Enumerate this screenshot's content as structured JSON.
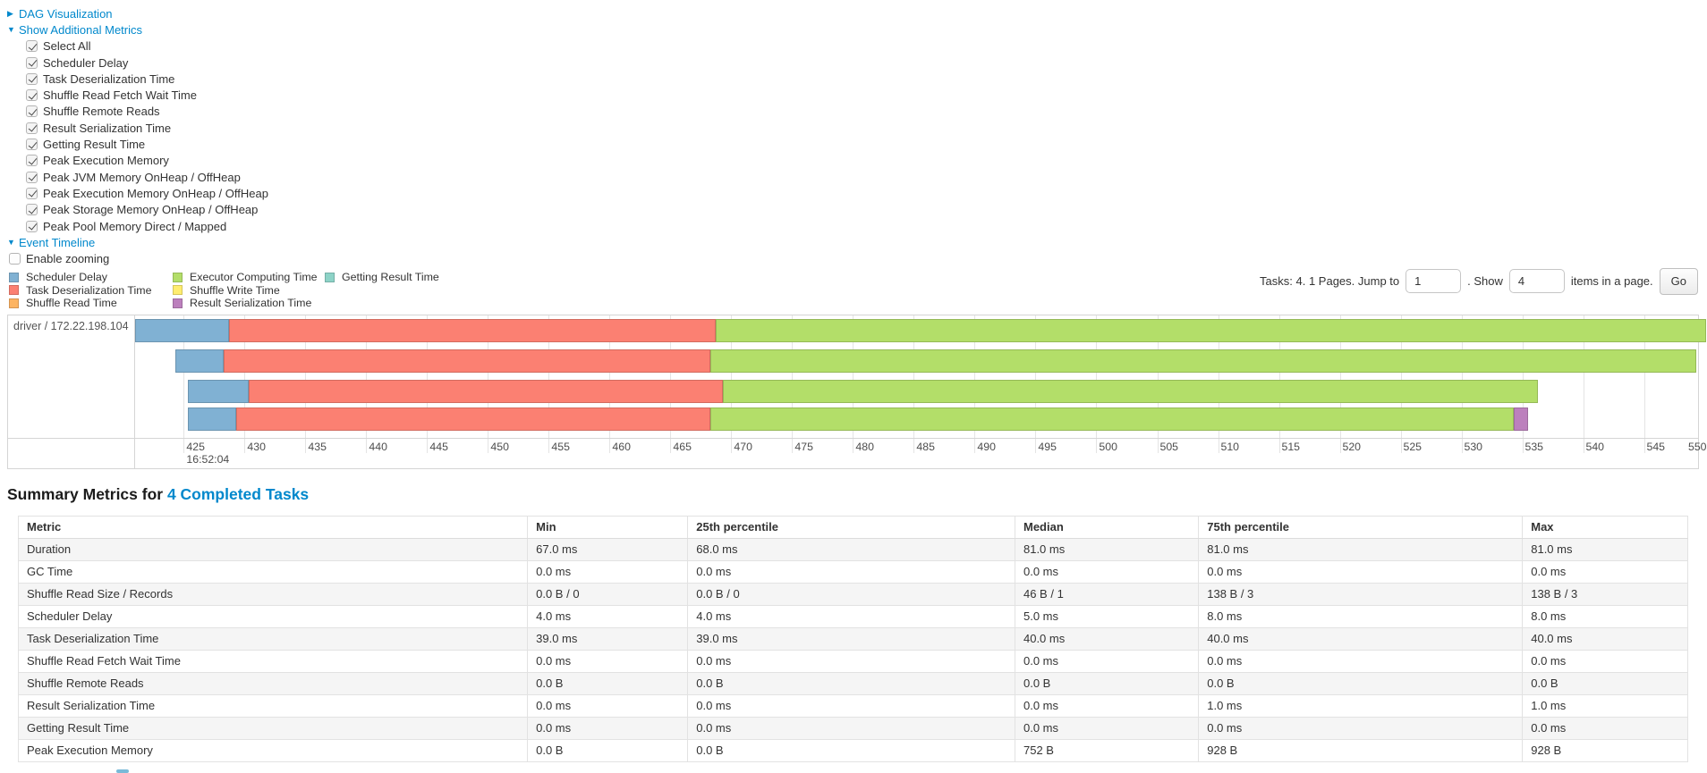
{
  "page": {
    "dag_section_label": "DAG Visualization",
    "metrics_section_label": "Show Additional Metrics",
    "metric_checkboxes": [
      {
        "label": "Select All",
        "checked": true
      },
      {
        "label": "Scheduler Delay",
        "checked": true
      },
      {
        "label": "Task Deserialization Time",
        "checked": true
      },
      {
        "label": "Shuffle Read Fetch Wait Time",
        "checked": true
      },
      {
        "label": "Shuffle Remote Reads",
        "checked": true
      },
      {
        "label": "Result Serialization Time",
        "checked": true
      },
      {
        "label": "Getting Result Time",
        "checked": true
      },
      {
        "label": "Peak Execution Memory",
        "checked": true
      },
      {
        "label": "Peak JVM Memory OnHeap / OffHeap",
        "checked": true
      },
      {
        "label": "Peak Execution Memory OnHeap / OffHeap",
        "checked": true
      },
      {
        "label": "Peak Storage Memory OnHeap / OffHeap",
        "checked": true
      },
      {
        "label": "Peak Pool Memory Direct / Mapped",
        "checked": true
      }
    ],
    "timeline_section_label": "Event Timeline",
    "enable_zooming": {
      "label": "Enable zooming",
      "checked": false
    }
  },
  "legend": {
    "series": {
      "scheduler_delay": {
        "label": "Scheduler Delay",
        "fill": "#80B1D3",
        "stroke": "#6B94B0"
      },
      "task_deserialization": {
        "label": "Task Deserialization Time",
        "fill": "#FB8072",
        "stroke": "#D26B5F"
      },
      "shuffle_read": {
        "label": "Shuffle Read Time",
        "fill": "#FDB462",
        "stroke": "#D49451"
      },
      "executor_computing": {
        "label": "Executor Computing Time",
        "fill": "#B3DE69",
        "stroke": "#95B957"
      },
      "shuffle_write": {
        "label": "Shuffle Write Time",
        "fill": "#FFED6F",
        "stroke": "#D4C55C"
      },
      "result_serialization": {
        "label": "Result Serialization Time",
        "fill": "#BC80BD",
        "stroke": "#9C6A9C"
      },
      "getting_result": {
        "label": "Getting Result Time",
        "fill": "#8DD3C7",
        "stroke": "#75AFA6"
      }
    },
    "columns": [
      [
        "scheduler_delay",
        "task_deserialization",
        "shuffle_read"
      ],
      [
        "executor_computing",
        "shuffle_write",
        "result_serialization"
      ],
      [
        "getting_result"
      ]
    ]
  },
  "pagination": {
    "prefix": "Tasks: 4. 1 Pages. Jump to",
    "jump_value": "1",
    "mid": ". Show",
    "show_value": "4",
    "suffix": "items in a page.",
    "go_label": "Go"
  },
  "chart_data": {
    "type": "timeline",
    "executor_label": "driver / 172.22.198.104",
    "axis": {
      "domain_start": 421,
      "domain_end": 549.45,
      "tick_first": 425,
      "tick_step": 5,
      "tick_last": 550,
      "major_time_label": "16:52:04",
      "unit": "ms"
    },
    "tasks": [
      {
        "launch": 421.0,
        "segments": [
          [
            "scheduler_delay",
            7.7
          ],
          [
            "task_deserialization",
            40.0
          ],
          [
            "executor_computing",
            81.4
          ]
        ]
      },
      {
        "launch": 424.3,
        "segments": [
          [
            "scheduler_delay",
            4.0
          ],
          [
            "task_deserialization",
            40.0
          ],
          [
            "executor_computing",
            81.0
          ]
        ]
      },
      {
        "launch": 425.3,
        "segments": [
          [
            "scheduler_delay",
            5.0
          ],
          [
            "task_deserialization",
            39.0
          ],
          [
            "executor_computing",
            67.0
          ]
        ]
      },
      {
        "launch": 425.3,
        "segments": [
          [
            "scheduler_delay",
            4.0
          ],
          [
            "task_deserialization",
            39.0
          ],
          [
            "executor_computing",
            66.0
          ],
          [
            "result_serialization",
            1.2
          ]
        ]
      }
    ]
  },
  "summary": {
    "heading_prefix": "Summary Metrics for ",
    "heading_link": "4 Completed Tasks",
    "table": {
      "headers": [
        "Metric",
        "Min",
        "25th percentile",
        "Median",
        "75th percentile",
        "Max"
      ],
      "rows": [
        [
          "Duration",
          "67.0 ms",
          "68.0 ms",
          "81.0 ms",
          "81.0 ms",
          "81.0 ms"
        ],
        [
          "GC Time",
          "0.0 ms",
          "0.0 ms",
          "0.0 ms",
          "0.0 ms",
          "0.0 ms"
        ],
        [
          "Shuffle Read Size / Records",
          "0.0 B / 0",
          "0.0 B / 0",
          "46 B / 1",
          "138 B / 3",
          "138 B / 3"
        ],
        [
          "Scheduler Delay",
          "4.0 ms",
          "4.0 ms",
          "5.0 ms",
          "8.0 ms",
          "8.0 ms"
        ],
        [
          "Task Deserialization Time",
          "39.0 ms",
          "39.0 ms",
          "40.0 ms",
          "40.0 ms",
          "40.0 ms"
        ],
        [
          "Shuffle Read Fetch Wait Time",
          "0.0 ms",
          "0.0 ms",
          "0.0 ms",
          "0.0 ms",
          "0.0 ms"
        ],
        [
          "Shuffle Remote Reads",
          "0.0 B",
          "0.0 B",
          "0.0 B",
          "0.0 B",
          "0.0 B"
        ],
        [
          "Result Serialization Time",
          "0.0 ms",
          "0.0 ms",
          "0.0 ms",
          "1.0 ms",
          "1.0 ms"
        ],
        [
          "Getting Result Time",
          "0.0 ms",
          "0.0 ms",
          "0.0 ms",
          "0.0 ms",
          "0.0 ms"
        ],
        [
          "Peak Execution Memory",
          "0.0 B",
          "0.0 B",
          "752 B",
          "928 B",
          "928 B"
        ]
      ]
    }
  },
  "colors": {
    "link": "#0088CC",
    "text": "#333333",
    "table_border": "#E2E2E2",
    "stripe": "#F5F5F5"
  }
}
